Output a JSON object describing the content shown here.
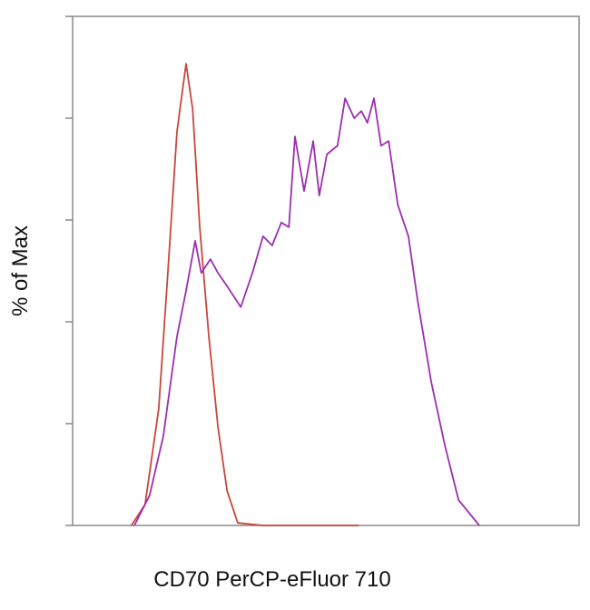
{
  "chart_data": {
    "type": "line",
    "x_label": "CD70 PerCP-eFluor 710",
    "y_label": "% of Max",
    "xlim": [
      0,
      100
    ],
    "ylim": [
      0,
      100
    ],
    "yticks": [
      0,
      20,
      40,
      60,
      80,
      100
    ],
    "series": [
      {
        "color": "#c8463c",
        "x": [
          11.6,
          14.3,
          17.0,
          18.8,
          20.6,
          22.4,
          23.7,
          25.1,
          26.9,
          28.7,
          30.5,
          32.6,
          37.6,
          56.5
        ],
        "values": [
          0,
          4.1,
          22.9,
          49.6,
          77.3,
          90.7,
          81.8,
          58.6,
          37.1,
          19.3,
          6.8,
          0.5,
          0,
          0
        ]
      },
      {
        "color": "#9b2fae",
        "x": [
          12.2,
          15.2,
          17.9,
          20.6,
          22.4,
          24.2,
          25.4,
          27.2,
          28.7,
          30.5,
          33.2,
          35.5,
          37.6,
          39.4,
          41.2,
          42.7,
          43.9,
          45.7,
          47.5,
          48.7,
          50.2,
          52.3,
          53.8,
          55.6,
          57.0,
          58.2,
          59.5,
          60.9,
          62.4,
          64.2,
          66.3,
          68.1,
          70.8,
          73.5,
          76.2,
          80.3
        ],
        "values": [
          0,
          5.9,
          17.5,
          37.1,
          46.1,
          55.9,
          49.6,
          52.3,
          49.6,
          47.0,
          42.9,
          49.6,
          56.8,
          55.0,
          59.5,
          58.6,
          76.4,
          65.7,
          75.5,
          64.8,
          72.9,
          74.6,
          83.9,
          80.0,
          81.4,
          79.1,
          83.9,
          74.6,
          75.5,
          63.0,
          56.8,
          44.3,
          28.2,
          15.7,
          5.0,
          0
        ]
      }
    ]
  }
}
